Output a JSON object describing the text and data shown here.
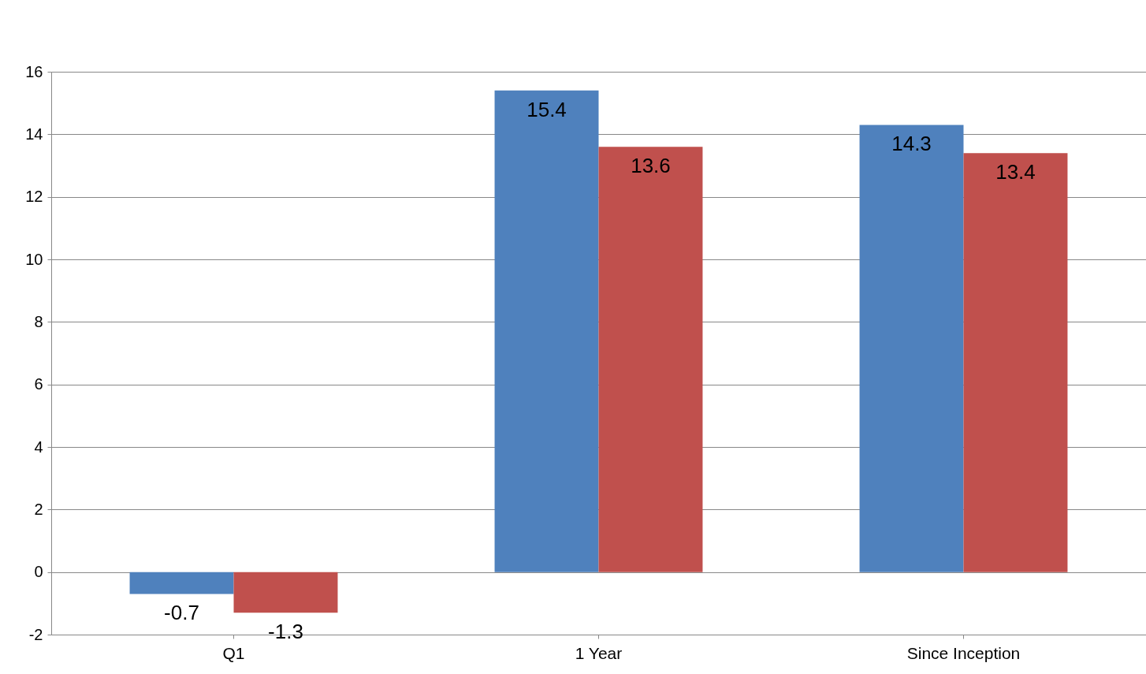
{
  "chart_data": {
    "type": "bar",
    "categories": [
      "Q1",
      "1 Year",
      "Since Inception"
    ],
    "series": [
      {
        "color": "#4f81bd",
        "values": [
          -0.7,
          15.4,
          14.3
        ]
      },
      {
        "color": "#c0504d",
        "values": [
          -1.3,
          13.6,
          13.4
        ]
      }
    ],
    "ylim": [
      -2,
      16
    ],
    "yticks": [
      -2,
      0,
      2,
      4,
      6,
      8,
      10,
      12,
      14,
      16
    ],
    "grid": "y",
    "data_labels": true
  }
}
